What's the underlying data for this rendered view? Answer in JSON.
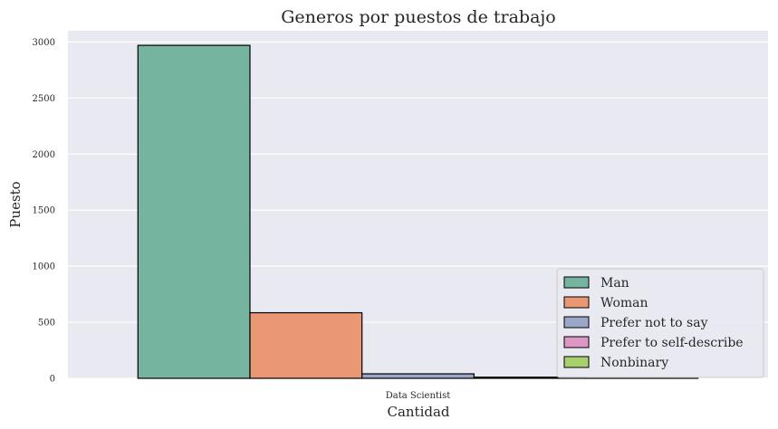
{
  "chart_data": {
    "type": "bar",
    "title": "Generos por puestos de trabajo",
    "xlabel": "Cantidad",
    "ylabel": "Puesto",
    "categories": [
      "Data Scientist"
    ],
    "series": [
      {
        "name": "Man",
        "values": [
          2970
        ],
        "color": "#75b5a0"
      },
      {
        "name": "Woman",
        "values": [
          585
        ],
        "color": "#ea9774"
      },
      {
        "name": "Prefer not to say",
        "values": [
          40
        ],
        "color": "#9ba6c8"
      },
      {
        "name": "Prefer to self-describe",
        "values": [
          10
        ],
        "color": "#dc97c4"
      },
      {
        "name": "Nonbinary",
        "values": [
          8
        ],
        "color": "#a8d06c"
      }
    ],
    "ylim": [
      0,
      3100
    ],
    "yticks": [
      0,
      500,
      1000,
      1500,
      2000,
      2500,
      3000
    ],
    "grid": true,
    "legend_position": "bottom-right",
    "background_color": "#e9e9f1",
    "grid_color": "#ffffff"
  }
}
